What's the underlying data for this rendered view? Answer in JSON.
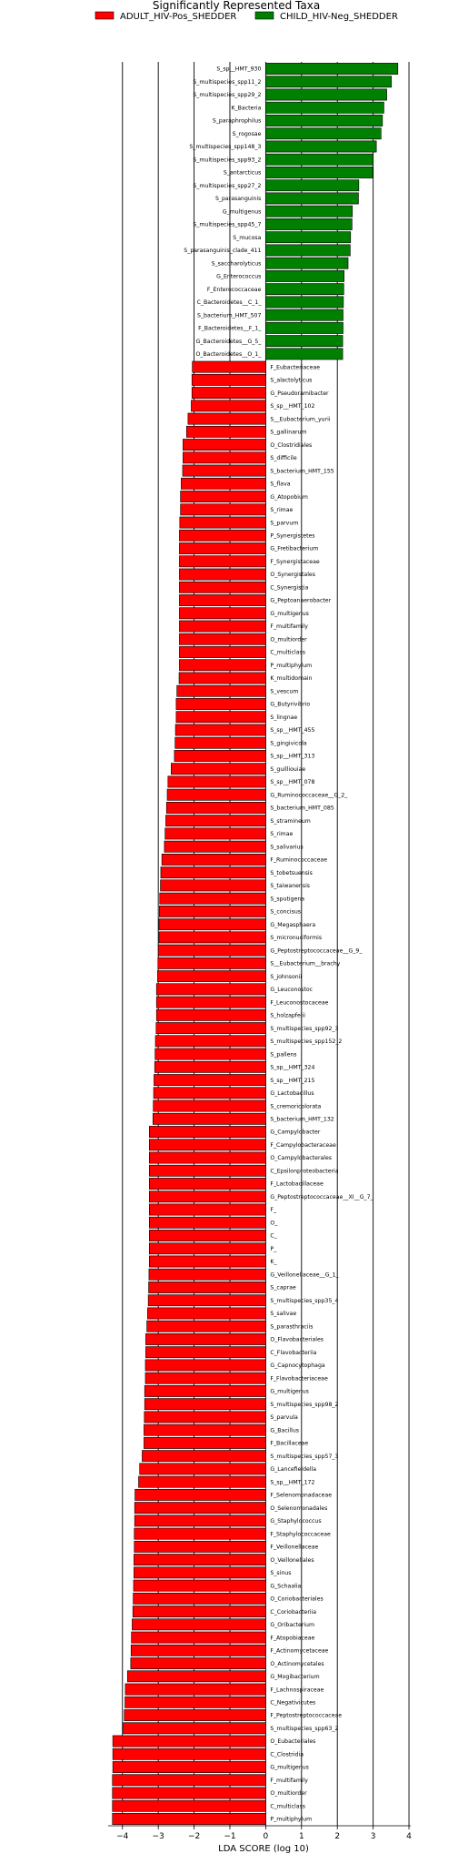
{
  "chart_data": {
    "type": "bar",
    "orientation": "horizontal",
    "title": "Significantly Represented Taxa",
    "xlabel": "LDA SCORE (log 10)",
    "xlim": [
      -4.4,
      4.05
    ],
    "xticks": [
      -4,
      -3,
      -2,
      -1,
      0,
      1,
      2,
      3,
      4
    ],
    "grid": "vertical lines at integer ticks",
    "legend_placement": "top",
    "series": [
      {
        "name": "ADULT_HIV-Pos_SHEDDER",
        "color": "#ff0000"
      },
      {
        "name": "CHILD_HIV-Neg_SHEDDER",
        "color": "#008000"
      }
    ],
    "bars": [
      {
        "label": "S_sp__HMT_930",
        "value": 3.69,
        "group": 1
      },
      {
        "label": "S_multispecies_spp11_2",
        "value": 3.51,
        "group": 1
      },
      {
        "label": "S_multispecies_spp29_2",
        "value": 3.38,
        "group": 1
      },
      {
        "label": "K_Bacteria",
        "value": 3.3,
        "group": 1
      },
      {
        "label": "S_paraphrophilus",
        "value": 3.26,
        "group": 1
      },
      {
        "label": "S_rogosae",
        "value": 3.22,
        "group": 1
      },
      {
        "label": "S_multispecies_spp148_3",
        "value": 3.09,
        "group": 1
      },
      {
        "label": "S_multispecies_spp93_2",
        "value": 3.0,
        "group": 1
      },
      {
        "label": "S_antarcticus",
        "value": 2.99,
        "group": 1
      },
      {
        "label": "S_multispecies_spp27_2",
        "value": 2.6,
        "group": 1
      },
      {
        "label": "S_parasanguinis",
        "value": 2.59,
        "group": 1
      },
      {
        "label": "G_multigenus",
        "value": 2.42,
        "group": 1
      },
      {
        "label": "S_multispecies_spp45_7",
        "value": 2.41,
        "group": 1
      },
      {
        "label": "S_mucosa",
        "value": 2.37,
        "group": 1
      },
      {
        "label": "S_parasanguinis_clade_411",
        "value": 2.36,
        "group": 1
      },
      {
        "label": "S_saccharolyticus",
        "value": 2.3,
        "group": 1
      },
      {
        "label": "G_Enterococcus",
        "value": 2.19,
        "group": 1
      },
      {
        "label": "F_Enterococcaceae",
        "value": 2.18,
        "group": 1
      },
      {
        "label": "C_Bacteroidetes__C_1_",
        "value": 2.17,
        "group": 1
      },
      {
        "label": "S_bacterium_HMT_507",
        "value": 2.16,
        "group": 1
      },
      {
        "label": "F_Bacteroidetes__F_1_",
        "value": 2.16,
        "group": 1
      },
      {
        "label": "G_Bacteroidetes__G_5_",
        "value": 2.15,
        "group": 1
      },
      {
        "label": "O_Bacteroidetes__O_1_",
        "value": 2.15,
        "group": 1
      },
      {
        "label": "F_Eubacteriaceae",
        "value": -2.05,
        "group": 0
      },
      {
        "label": "S_alactolyticus",
        "value": -2.06,
        "group": 0
      },
      {
        "label": "G_Pseudoramibacter",
        "value": -2.06,
        "group": 0
      },
      {
        "label": "S_sp__HMT_102",
        "value": -2.08,
        "group": 0
      },
      {
        "label": "S__Eubacterium_yurii",
        "value": -2.17,
        "group": 0
      },
      {
        "label": "S_gallinarum",
        "value": -2.21,
        "group": 0
      },
      {
        "label": "O_Clostridiales",
        "value": -2.31,
        "group": 0
      },
      {
        "label": "S_difficile",
        "value": -2.31,
        "group": 0
      },
      {
        "label": "S_bacterium_HMT_155",
        "value": -2.32,
        "group": 0
      },
      {
        "label": "S_flava",
        "value": -2.36,
        "group": 0
      },
      {
        "label": "G_Atopobium",
        "value": -2.38,
        "group": 0
      },
      {
        "label": "S_rimae",
        "value": -2.38,
        "group": 0
      },
      {
        "label": "S_parvum",
        "value": -2.4,
        "group": 0
      },
      {
        "label": "P_Synergistetes",
        "value": -2.41,
        "group": 0
      },
      {
        "label": "G_Fretibacterium",
        "value": -2.41,
        "group": 0
      },
      {
        "label": "F_Synergistaceae",
        "value": -2.41,
        "group": 0
      },
      {
        "label": "O_Synergistales",
        "value": -2.41,
        "group": 0
      },
      {
        "label": "C_Synergistia",
        "value": -2.41,
        "group": 0
      },
      {
        "label": "G_Peptoanaerobacter",
        "value": -2.41,
        "group": 0
      },
      {
        "label": "G_multigenus",
        "value": -2.41,
        "group": 0
      },
      {
        "label": "F_multifamily",
        "value": -2.41,
        "group": 0
      },
      {
        "label": "O_multiorder",
        "value": -2.41,
        "group": 0
      },
      {
        "label": "C_multiclass",
        "value": -2.41,
        "group": 0
      },
      {
        "label": "P_multiphylum",
        "value": -2.41,
        "group": 0
      },
      {
        "label": "K_multidomain",
        "value": -2.42,
        "group": 0
      },
      {
        "label": "S_vescum",
        "value": -2.48,
        "group": 0
      },
      {
        "label": "G_Butyrivibrio",
        "value": -2.5,
        "group": 0
      },
      {
        "label": "S_lingnae",
        "value": -2.5,
        "group": 0
      },
      {
        "label": "S_sp__HMT_455",
        "value": -2.52,
        "group": 0
      },
      {
        "label": "S_gingivicola",
        "value": -2.53,
        "group": 0
      },
      {
        "label": "S_sp__HMT_313",
        "value": -2.55,
        "group": 0
      },
      {
        "label": "S_guilliouiae",
        "value": -2.64,
        "group": 0
      },
      {
        "label": "S_sp__HMT_078",
        "value": -2.73,
        "group": 0
      },
      {
        "label": "G_Ruminococcaceae__G_2_",
        "value": -2.75,
        "group": 0
      },
      {
        "label": "S_bacterium_HMT_085",
        "value": -2.77,
        "group": 0
      },
      {
        "label": "S_stramineum",
        "value": -2.79,
        "group": 0
      },
      {
        "label": "S_rimae",
        "value": -2.81,
        "group": 0
      },
      {
        "label": "S_salivarius",
        "value": -2.83,
        "group": 0
      },
      {
        "label": "F_Ruminococcaceae",
        "value": -2.9,
        "group": 0
      },
      {
        "label": "S_tobetsuensis",
        "value": -2.93,
        "group": 0
      },
      {
        "label": "S_taiwanensis",
        "value": -2.94,
        "group": 0
      },
      {
        "label": "S_sputigena",
        "value": -2.96,
        "group": 0
      },
      {
        "label": "S_concisus",
        "value": -2.97,
        "group": 0
      },
      {
        "label": "G_Megasphaera",
        "value": -2.98,
        "group": 0
      },
      {
        "label": "S_micronuciformis",
        "value": -2.98,
        "group": 0
      },
      {
        "label": "G_Peptostreptococcaceae__G_9_",
        "value": -3.0,
        "group": 0
      },
      {
        "label": "S__Eubacterium__brachy",
        "value": -3.01,
        "group": 0
      },
      {
        "label": "S_johnsonii",
        "value": -3.02,
        "group": 0
      },
      {
        "label": "G_Leuconostoc",
        "value": -3.05,
        "group": 0
      },
      {
        "label": "F_Leuconostocaceae",
        "value": -3.05,
        "group": 0
      },
      {
        "label": "S_holzapfelii",
        "value": -3.05,
        "group": 0
      },
      {
        "label": "S_multispecies_spp92_3",
        "value": -3.06,
        "group": 0
      },
      {
        "label": "S_multispecies_spp152_2",
        "value": -3.08,
        "group": 0
      },
      {
        "label": "S_pallens",
        "value": -3.09,
        "group": 0
      },
      {
        "label": "S_sp__HMT_324",
        "value": -3.1,
        "group": 0
      },
      {
        "label": "S_sp__HMT_215",
        "value": -3.12,
        "group": 0
      },
      {
        "label": "G_Lactobacillus",
        "value": -3.13,
        "group": 0
      },
      {
        "label": "S_cremoricolorata",
        "value": -3.14,
        "group": 0
      },
      {
        "label": "S_bacterium_HMT_132",
        "value": -3.15,
        "group": 0
      },
      {
        "label": "G_Campylobacter",
        "value": -3.25,
        "group": 0
      },
      {
        "label": "F_Campylobacteraceae",
        "value": -3.25,
        "group": 0
      },
      {
        "label": "O_Campylobacterales",
        "value": -3.25,
        "group": 0
      },
      {
        "label": "C_Epsilonproteobacteria",
        "value": -3.25,
        "group": 0
      },
      {
        "label": "F_Lactobacillaceae",
        "value": -3.25,
        "group": 0
      },
      {
        "label": "G_Peptostreptococcaceae__XI__G_7_",
        "value": -3.25,
        "group": 0
      },
      {
        "label": "F_",
        "value": -3.25,
        "group": 0
      },
      {
        "label": "O_",
        "value": -3.25,
        "group": 0
      },
      {
        "label": "C_",
        "value": -3.25,
        "group": 0
      },
      {
        "label": "P_",
        "value": -3.25,
        "group": 0
      },
      {
        "label": "K_",
        "value": -3.25,
        "group": 0
      },
      {
        "label": "G_Veillonellaceae__G_1_",
        "value": -3.26,
        "group": 0
      },
      {
        "label": "S_caprae",
        "value": -3.27,
        "group": 0
      },
      {
        "label": "S_multispecies_spp35_4",
        "value": -3.28,
        "group": 0
      },
      {
        "label": "S_salivae",
        "value": -3.3,
        "group": 0
      },
      {
        "label": "S_parasthraciis",
        "value": -3.32,
        "group": 0
      },
      {
        "label": "O_Flavobacteriales",
        "value": -3.35,
        "group": 0
      },
      {
        "label": "C_Flavobacteriia",
        "value": -3.35,
        "group": 0
      },
      {
        "label": "G_Capnocytophaga",
        "value": -3.36,
        "group": 0
      },
      {
        "label": "F_Flavobacteriaceae",
        "value": -3.36,
        "group": 0
      },
      {
        "label": "G_multigenus",
        "value": -3.38,
        "group": 0
      },
      {
        "label": "S_multispecies_spp98_2",
        "value": -3.38,
        "group": 0
      },
      {
        "label": "S_parvula",
        "value": -3.39,
        "group": 0
      },
      {
        "label": "G_Bacillus",
        "value": -3.4,
        "group": 0
      },
      {
        "label": "F_Bacillaceae",
        "value": -3.4,
        "group": 0
      },
      {
        "label": "S_multispecies_spp57_3",
        "value": -3.45,
        "group": 0
      },
      {
        "label": "G_Lancefieldella",
        "value": -3.52,
        "group": 0
      },
      {
        "label": "S_sp__HMT_172",
        "value": -3.55,
        "group": 0
      },
      {
        "label": "F_Selenomonadaceae",
        "value": -3.65,
        "group": 0
      },
      {
        "label": "O_Selenomonadales",
        "value": -3.66,
        "group": 0
      },
      {
        "label": "G_Staphylococcus",
        "value": -3.66,
        "group": 0
      },
      {
        "label": "F_Staphylococcaceae",
        "value": -3.67,
        "group": 0
      },
      {
        "label": "F_Veillonellaceae",
        "value": -3.67,
        "group": 0
      },
      {
        "label": "O_Veillonellales",
        "value": -3.68,
        "group": 0
      },
      {
        "label": "S_sinus",
        "value": -3.68,
        "group": 0
      },
      {
        "label": "G_Schaalia",
        "value": -3.69,
        "group": 0
      },
      {
        "label": "O_Coriobacteriales",
        "value": -3.7,
        "group": 0
      },
      {
        "label": "C_Coriobacteriia",
        "value": -3.71,
        "group": 0
      },
      {
        "label": "G_Oribacterium",
        "value": -3.73,
        "group": 0
      },
      {
        "label": "F_Atopobiaceae",
        "value": -3.75,
        "group": 0
      },
      {
        "label": "F_Actinomycetaceae",
        "value": -3.76,
        "group": 0
      },
      {
        "label": "O_Actinomycetales",
        "value": -3.77,
        "group": 0
      },
      {
        "label": "G_Mogibacterium",
        "value": -3.86,
        "group": 0
      },
      {
        "label": "F_Lachnospiraceae",
        "value": -3.92,
        "group": 0
      },
      {
        "label": "C_Negativicutes",
        "value": -3.93,
        "group": 0
      },
      {
        "label": "F_Peptostreptococcaceae",
        "value": -3.95,
        "group": 0
      },
      {
        "label": "S_multispecies_spp63_2",
        "value": -3.98,
        "group": 0
      },
      {
        "label": "O_Eubacteriales",
        "value": -4.27,
        "group": 0
      },
      {
        "label": "C_Clostridia",
        "value": -4.27,
        "group": 0
      },
      {
        "label": "G_multigenus",
        "value": -4.27,
        "group": 0
      },
      {
        "label": "F_multifamily",
        "value": -4.28,
        "group": 0
      },
      {
        "label": "O_multiorder",
        "value": -4.28,
        "group": 0
      },
      {
        "label": "C_multiclass",
        "value": -4.28,
        "group": 0
      },
      {
        "label": "P_multiphylum",
        "value": -4.28,
        "group": 0
      }
    ]
  }
}
